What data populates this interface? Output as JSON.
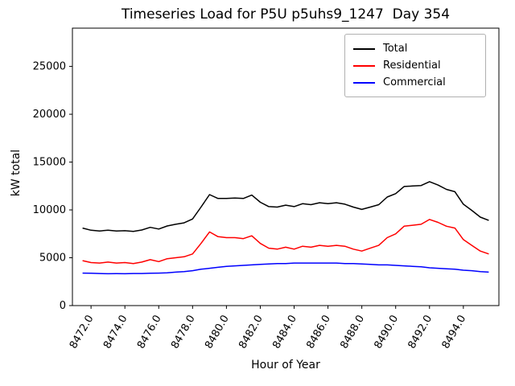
{
  "chart_data": {
    "type": "line",
    "title": "Timeseries Load for P5U p5uhs9_1247  Day 354",
    "xlabel": "Hour of Year",
    "ylabel": "kW total",
    "xlim": [
      8470.9,
      8496.1
    ],
    "ylim": [
      0,
      29000
    ],
    "xticks": [
      8472,
      8474,
      8476,
      8478,
      8480,
      8482,
      8484,
      8486,
      8488,
      8490,
      8492,
      8494
    ],
    "xtick_labels": [
      "8472.0",
      "8474.0",
      "8476.0",
      "8478.0",
      "8480.0",
      "8482.0",
      "8484.0",
      "8486.0",
      "8488.0",
      "8490.0",
      "8492.0",
      "8494.0"
    ],
    "yticks": [
      0,
      5000,
      10000,
      15000,
      20000,
      25000
    ],
    "ytick_labels": [
      "0",
      "5000",
      "10000",
      "15000",
      "20000",
      "25000"
    ],
    "grid": false,
    "legend_position": "upper right",
    "x": [
      8471.5,
      8472.0,
      8472.5,
      8473.0,
      8473.5,
      8474.0,
      8474.5,
      8475.0,
      8475.5,
      8476.0,
      8476.5,
      8477.0,
      8477.5,
      8478.0,
      8478.5,
      8479.0,
      8479.5,
      8480.0,
      8480.5,
      8481.0,
      8481.5,
      8482.0,
      8482.5,
      8483.0,
      8483.5,
      8484.0,
      8484.5,
      8485.0,
      8485.5,
      8486.0,
      8486.5,
      8487.0,
      8487.5,
      8488.0,
      8488.5,
      8489.0,
      8489.5,
      8490.0,
      8490.5,
      8491.0,
      8491.5,
      8492.0,
      8492.5,
      8493.0,
      8493.5,
      8494.0,
      8494.5,
      8495.0,
      8495.5
    ],
    "series": [
      {
        "name": "Total",
        "color": "#000000",
        "values": [
          8100,
          7880,
          7800,
          7880,
          7790,
          7830,
          7750,
          7900,
          8180,
          8000,
          8320,
          8500,
          8650,
          9050,
          10300,
          11600,
          11200,
          11200,
          11250,
          11200,
          11550,
          10800,
          10350,
          10300,
          10500,
          10350,
          10650,
          10550,
          10750,
          10650,
          10750,
          10600,
          10300,
          10050,
          10300,
          10550,
          11350,
          11700,
          12450,
          12500,
          12550,
          12950,
          12600,
          12150,
          11900,
          10600,
          9950,
          9250,
          8900
        ]
      },
      {
        "name": "Residential",
        "color": "#ff0000",
        "values": [
          4700,
          4500,
          4450,
          4550,
          4450,
          4500,
          4400,
          4550,
          4800,
          4600,
          4900,
          5000,
          5100,
          5400,
          6500,
          7700,
          7200,
          7100,
          7100,
          7000,
          7300,
          6500,
          6000,
          5900,
          6100,
          5900,
          6200,
          6100,
          6300,
          6200,
          6300,
          6200,
          5900,
          5700,
          6000,
          6300,
          7100,
          7500,
          8300,
          8400,
          8500,
          9000,
          8700,
          8300,
          8100,
          6900,
          6300,
          5700,
          5400
        ]
      },
      {
        "name": "Commercial",
        "color": "#0000ff",
        "values": [
          3400,
          3380,
          3350,
          3330,
          3340,
          3330,
          3350,
          3350,
          3380,
          3400,
          3420,
          3500,
          3550,
          3650,
          3800,
          3900,
          4000,
          4100,
          4150,
          4200,
          4250,
          4300,
          4350,
          4400,
          4400,
          4450,
          4450,
          4450,
          4450,
          4450,
          4450,
          4400,
          4400,
          4350,
          4300,
          4250,
          4250,
          4200,
          4150,
          4100,
          4050,
          3950,
          3900,
          3850,
          3800,
          3700,
          3650,
          3550,
          3500
        ]
      }
    ]
  }
}
